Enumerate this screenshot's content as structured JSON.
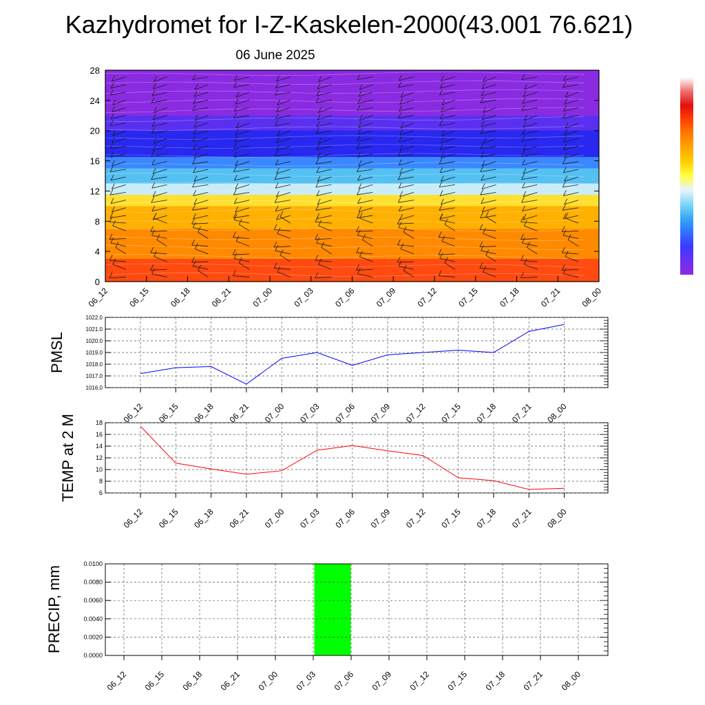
{
  "title": "Kazhydromet for I-Z-Kaskelen-2000(43.001 76.621)",
  "subtitle": "06 June 2025",
  "time_labels": [
    "06_12",
    "06_15",
    "06_18",
    "06_21",
    "07_00",
    "07_03",
    "07_06",
    "07_09",
    "07_12",
    "07_15",
    "07_18",
    "07_21",
    "08_00"
  ],
  "colors": {
    "pmsl_line": "#0000ff",
    "temp_line": "#ff0000",
    "precip_bar": "#00ff00",
    "colorbar": [
      "#8a2be2",
      "#6a30f0",
      "#3a3aff",
      "#3070ff",
      "#35a8f5",
      "#7fd8f8",
      "#e8f4ff",
      "#ffff40",
      "#ffd000",
      "#ffa500",
      "#ff7a00",
      "#ff4000",
      "#e01010",
      "#f07070",
      "#ffffff"
    ]
  },
  "chart_data": [
    {
      "type": "heatmap",
      "y_ticks": [
        "0",
        "4",
        "8",
        "12",
        "16",
        "20",
        "24",
        "28"
      ],
      "x_tick_labels": [
        "06_12",
        "06_15",
        "06_18",
        "06_21",
        "07_00",
        "07_03",
        "07_06",
        "07_09",
        "07_12",
        "07_15",
        "07_18",
        "07_21",
        "08_00"
      ],
      "ylim": [
        0,
        28
      ],
      "xlim": [
        0,
        36
      ],
      "color_bands_by_level": [
        {
          "from": 0,
          "to": 3,
          "color": "#ff4a10"
        },
        {
          "from": 3,
          "to": 7,
          "color": "#ff8a00"
        },
        {
          "from": 7,
          "to": 10,
          "color": "#ffb000"
        },
        {
          "from": 10,
          "to": 11.5,
          "color": "#ffe030"
        },
        {
          "from": 11.5,
          "to": 13,
          "color": "#c8ecf8"
        },
        {
          "from": 13,
          "to": 15,
          "color": "#55c0f2"
        },
        {
          "from": 15,
          "to": 16.5,
          "color": "#3a88ff"
        },
        {
          "from": 16.5,
          "to": 20,
          "color": "#2828f0"
        },
        {
          "from": 20,
          "to": 22,
          "color": "#5a30f0"
        },
        {
          "from": 22,
          "to": 28,
          "color": "#8a2be2"
        }
      ],
      "wind_barbs": "present"
    },
    {
      "type": "line",
      "ylabel": "PMSL",
      "x_labels": [
        "06_12",
        "06_15",
        "06_18",
        "06_21",
        "07_00",
        "07_03",
        "07_06",
        "07_09",
        "07_12",
        "07_15",
        "07_18",
        "07_21",
        "08_00"
      ],
      "values": [
        1017.2,
        1017.7,
        1017.8,
        1016.3,
        1018.5,
        1019.0,
        1017.9,
        1018.8,
        1019.0,
        1019.2,
        1019.0,
        1020.8,
        1021.4
      ],
      "ylim": [
        1016.0,
        1022.0
      ],
      "y_ticks": [
        "1016.0",
        "1017.0",
        "1018.0",
        "1019.0",
        "1020.0",
        "1021.0",
        "1022.0"
      ],
      "grid": true
    },
    {
      "type": "line",
      "ylabel": "TEMP at 2 M",
      "x_labels": [
        "06_12",
        "06_15",
        "06_18",
        "06_21",
        "07_00",
        "07_03",
        "07_06",
        "07_09",
        "07_12",
        "07_15",
        "07_18",
        "07_21",
        "08_00"
      ],
      "values": [
        17.4,
        11.1,
        10.1,
        9.2,
        9.8,
        13.3,
        14.1,
        13.2,
        12.4,
        8.6,
        8.1,
        6.6,
        6.8
      ],
      "ylim": [
        6,
        18
      ],
      "y_ticks": [
        "6",
        "8",
        "10",
        "12",
        "14",
        "16",
        "18"
      ],
      "grid": true
    },
    {
      "type": "bar",
      "ylabel": "PRECIP, mm",
      "x_labels": [
        "06_12",
        "06_15",
        "06_18",
        "06_21",
        "07_00",
        "07_03",
        "07_06",
        "07_09",
        "07_12",
        "07_15",
        "07_18",
        "07_21",
        "08_00"
      ],
      "values": [
        0,
        0,
        0,
        0,
        0,
        0.01,
        0,
        0,
        0,
        0,
        0,
        0,
        0
      ],
      "ylim": [
        0,
        0.01
      ],
      "y_ticks": [
        "0.0000",
        "0.0020",
        "0.0040",
        "0.0060",
        "0.0080",
        "0.0100"
      ],
      "grid": true
    }
  ]
}
